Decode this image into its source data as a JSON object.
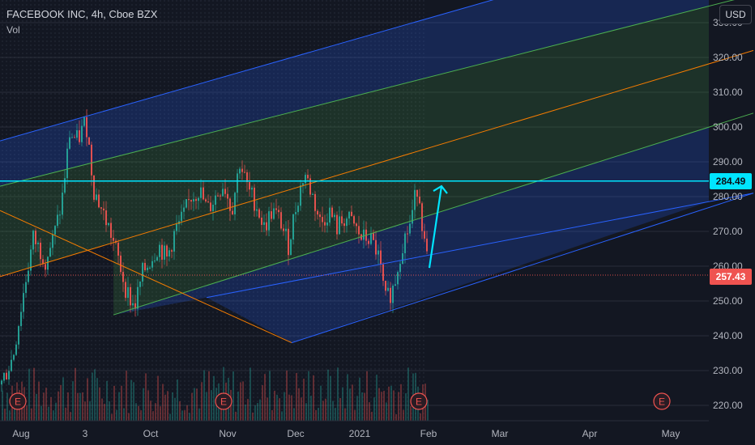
{
  "header": {
    "symbol_line": "FACEBOOK INC, 4h, Cboe BZX",
    "indicator": "Vol"
  },
  "currency_button": "USD",
  "price_tags": {
    "target": "284.49",
    "last": "257.43"
  },
  "colors": {
    "background": "#131722",
    "channel_outer": "#2962ff",
    "channel_mid": "#4caf50",
    "channel_median": "#f57c00",
    "target_line": "#00e5ff",
    "last_price": "#ef5350",
    "bull_candle": "#26a69a",
    "bear_candle": "#ef5350"
  },
  "chart_data": {
    "type": "candlestick",
    "y_axis_ticks": [
      "220.00",
      "230.00",
      "240.00",
      "250.00",
      "260.00",
      "270.00",
      "280.00",
      "290.00",
      "300.00",
      "310.00",
      "320.00",
      "330.00"
    ],
    "ylim": [
      218,
      332
    ],
    "x_axis_labels": [
      "Aug",
      "3",
      "Oct",
      "Nov",
      "Dec",
      "2021",
      "Feb",
      "Mar",
      "Apr",
      "May"
    ],
    "target_price": 284.49,
    "last_price": 257.43,
    "earnings_markers": [
      "E",
      "E",
      "E",
      "E"
    ],
    "channel": {
      "median": [
        [
          0,
          257
        ],
        [
          930,
          322
        ]
      ],
      "inner_upper": [
        [
          0,
          283
        ],
        [
          930,
          338
        ]
      ],
      "inner_lower": [
        [
          140,
          246
        ],
        [
          930,
          304
        ]
      ],
      "outer_upper": [
        [
          0,
          296
        ],
        [
          930,
          358
        ]
      ],
      "outer_lower": [
        [
          255,
          251
        ],
        [
          930,
          281
        ]
      ],
      "pivot_lines": [
        [
          [
            0,
            276
          ],
          [
            360,
            238
          ]
        ],
        [
          [
            360,
            238
          ],
          [
            930,
            281
          ]
        ]
      ]
    },
    "price_path": [
      [
        0,
        226
      ],
      [
        15,
        234
      ],
      [
        30,
        255
      ],
      [
        40,
        268
      ],
      [
        55,
        262
      ],
      [
        65,
        268
      ],
      [
        75,
        278
      ],
      [
        85,
        298
      ],
      [
        95,
        296
      ],
      [
        105,
        302
      ],
      [
        115,
        282
      ],
      [
        125,
        276
      ],
      [
        135,
        270
      ],
      [
        145,
        262
      ],
      [
        155,
        253
      ],
      [
        165,
        248
      ],
      [
        175,
        258
      ],
      [
        185,
        262
      ],
      [
        195,
        266
      ],
      [
        205,
        262
      ],
      [
        215,
        270
      ],
      [
        225,
        274
      ],
      [
        235,
        280
      ],
      [
        245,
        282
      ],
      [
        255,
        276
      ],
      [
        265,
        280
      ],
      [
        275,
        284
      ],
      [
        285,
        276
      ],
      [
        295,
        290
      ],
      [
        305,
        282
      ],
      [
        315,
        278
      ],
      [
        325,
        271
      ],
      [
        335,
        276
      ],
      [
        345,
        273
      ],
      [
        355,
        266
      ],
      [
        365,
        278
      ],
      [
        375,
        287
      ],
      [
        385,
        280
      ],
      [
        395,
        272
      ],
      [
        405,
        276
      ],
      [
        415,
        271
      ],
      [
        425,
        274
      ],
      [
        435,
        272
      ],
      [
        445,
        268
      ],
      [
        455,
        268
      ],
      [
        465,
        264
      ],
      [
        475,
        250
      ],
      [
        485,
        254
      ],
      [
        495,
        266
      ],
      [
        505,
        272
      ],
      [
        515,
        284
      ],
      [
        525,
        262
      ]
    ]
  }
}
